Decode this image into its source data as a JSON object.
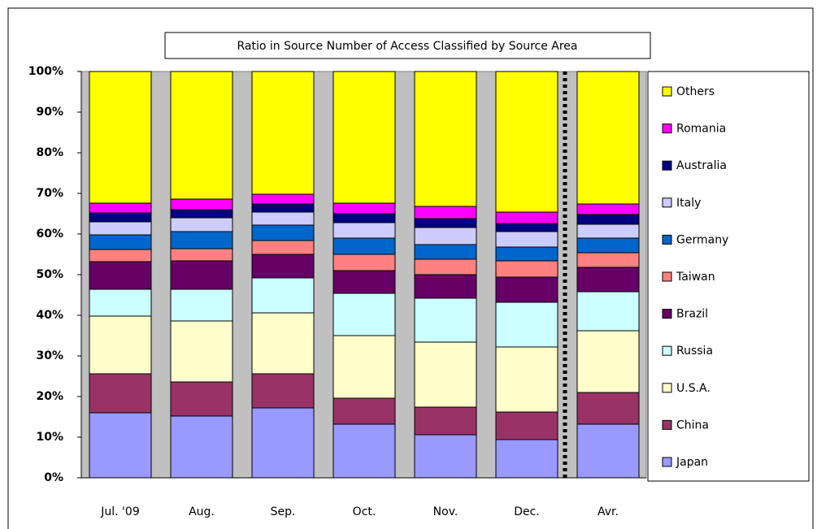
{
  "chart_data": {
    "type": "stacked_bar",
    "title": "Ratio in Source Number of Access Classified by Source Area",
    "categories": [
      "Jul. '09",
      "Aug.",
      "Sep.",
      "Oct.",
      "Nov.",
      "Dec.",
      "Avr."
    ],
    "series": [
      {
        "name": "Japan",
        "color": "#9999ff",
        "values": [
          16,
          15.2,
          17.2,
          13.2,
          10.6,
          9.4,
          13.2
        ]
      },
      {
        "name": "China",
        "color": "#993366",
        "values": [
          9.6,
          8.4,
          8.4,
          6.4,
          6.8,
          6.8,
          7.8
        ]
      },
      {
        "name": "U.S.A.",
        "color": "#ffffcc",
        "values": [
          14.2,
          15,
          15,
          15.4,
          16,
          16,
          15.2
        ]
      },
      {
        "name": "Russia",
        "color": "#ccffff",
        "values": [
          6.6,
          7.8,
          8.6,
          10.4,
          10.8,
          11,
          9.6
        ]
      },
      {
        "name": "Brazil",
        "color": "#660066",
        "values": [
          6.8,
          7,
          5.8,
          5.6,
          5.8,
          6.2,
          6
        ]
      },
      {
        "name": "Taiwan",
        "color": "#ff8080",
        "values": [
          3,
          3,
          3.4,
          4,
          3.8,
          4,
          3.6
        ]
      },
      {
        "name": "Germany",
        "color": "#0066cc",
        "values": [
          3.6,
          4.2,
          3.8,
          4,
          3.6,
          3.4,
          3.6
        ]
      },
      {
        "name": "Italy",
        "color": "#ccccff",
        "values": [
          3.2,
          3.4,
          3.2,
          3.8,
          4.2,
          3.8,
          3.4
        ]
      },
      {
        "name": "Australia",
        "color": "#000080",
        "values": [
          2.2,
          2,
          2,
          2.2,
          2.2,
          2,
          2.4
        ]
      },
      {
        "name": "Romania",
        "color": "#ff00ff",
        "values": [
          2.4,
          2.6,
          2.4,
          2.6,
          3,
          2.8,
          2.6
        ]
      },
      {
        "name": "Others",
        "color": "#ffff00",
        "values": [
          32.4,
          31.4,
          30.2,
          32.4,
          33.2,
          34.6,
          32.6
        ]
      }
    ],
    "ylim": [
      0,
      100
    ],
    "yticks": [
      {
        "value": 0,
        "label": "0%"
      },
      {
        "value": 10,
        "label": "10%"
      },
      {
        "value": 20,
        "label": "20%"
      },
      {
        "value": 30,
        "label": "30%"
      },
      {
        "value": 40,
        "label": "40%"
      },
      {
        "value": 50,
        "label": "50%"
      },
      {
        "value": 60,
        "label": "60%"
      },
      {
        "value": 70,
        "label": "70%"
      },
      {
        "value": 80,
        "label": "80%"
      },
      {
        "value": 90,
        "label": "90%"
      },
      {
        "value": 100,
        "label": "100%"
      }
    ],
    "legend": "right"
  }
}
